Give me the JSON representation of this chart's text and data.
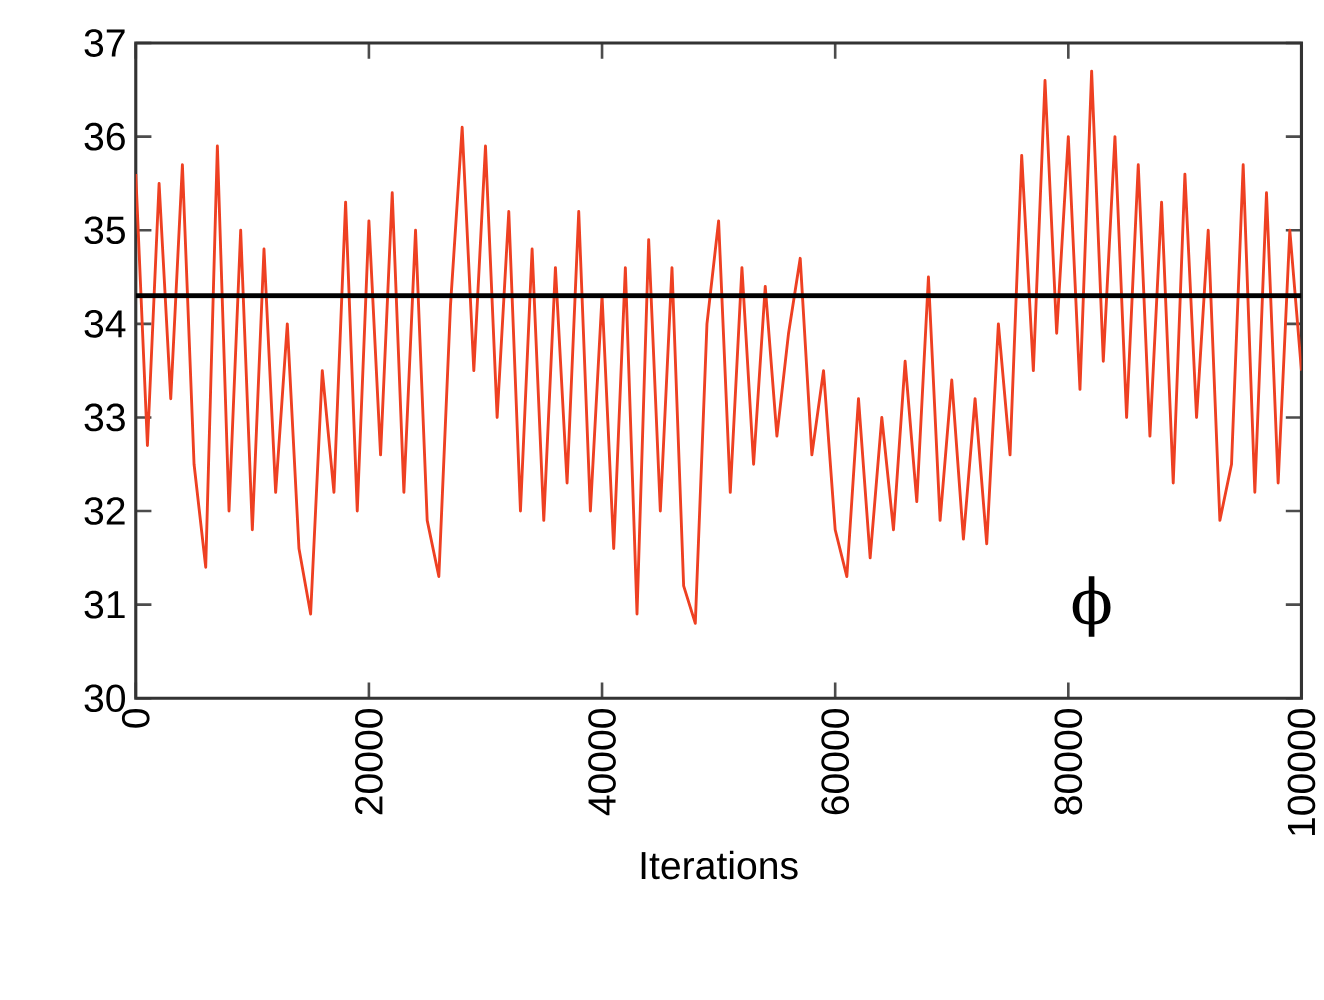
{
  "chart_data": {
    "type": "line",
    "xlabel": "Iterations",
    "x": [
      0,
      1000,
      2000,
      3000,
      4000,
      5000,
      6000,
      7000,
      8000,
      9000,
      10000,
      11000,
      12000,
      13000,
      14000,
      15000,
      16000,
      17000,
      18000,
      19000,
      20000,
      21000,
      22000,
      23000,
      24000,
      25000,
      26000,
      27000,
      28000,
      29000,
      30000,
      31000,
      32000,
      33000,
      34000,
      35000,
      36000,
      37000,
      38000,
      39000,
      40000,
      41000,
      42000,
      43000,
      44000,
      45000,
      46000,
      47000,
      48000,
      49000,
      50000,
      51000,
      52000,
      53000,
      54000,
      55000,
      56000,
      57000,
      58000,
      59000,
      60000,
      61000,
      62000,
      63000,
      64000,
      65000,
      66000,
      67000,
      68000,
      69000,
      70000,
      71000,
      72000,
      73000,
      74000,
      75000,
      76000,
      77000,
      78000,
      79000,
      80000,
      81000,
      82000,
      83000,
      84000,
      85000,
      86000,
      87000,
      88000,
      89000,
      90000,
      91000,
      92000,
      93000,
      94000,
      95000,
      96000,
      97000,
      98000,
      99000,
      100000
    ],
    "series": [
      {
        "color": "#ee4022",
        "values": [
          35.6,
          32.7,
          35.5,
          33.2,
          35.7,
          32.5,
          31.4,
          35.9,
          32.0,
          35.0,
          31.8,
          34.8,
          32.2,
          34.0,
          31.6,
          30.9,
          33.5,
          32.2,
          35.3,
          32.0,
          35.1,
          32.6,
          35.4,
          32.2,
          35.0,
          31.9,
          31.3,
          34.2,
          36.1,
          33.5,
          35.9,
          33.0,
          35.2,
          32.0,
          34.8,
          31.9,
          34.6,
          32.3,
          35.2,
          32.0,
          34.3,
          31.6,
          34.6,
          30.9,
          34.9,
          32.0,
          34.6,
          31.2,
          30.8,
          34.0,
          35.1,
          32.2,
          34.6,
          32.5,
          34.4,
          32.8,
          33.9,
          34.7,
          32.6,
          33.5,
          31.8,
          31.3,
          33.2,
          31.5,
          33.0,
          31.8,
          33.6,
          32.1,
          34.5,
          31.9,
          33.4,
          31.7,
          33.2,
          31.65,
          34.0,
          32.6,
          35.8,
          33.5,
          36.6,
          33.9,
          36.0,
          33.3,
          36.7,
          33.6,
          36.0,
          33.0,
          35.7,
          32.8,
          35.3,
          32.3,
          35.6,
          33.0,
          35.0,
          31.9,
          32.5,
          35.7,
          32.2,
          35.4,
          32.3,
          35.0,
          33.5
        ]
      }
    ],
    "ref_lines": [
      {
        "axis": "y",
        "value": 34.3,
        "color": "#000000"
      }
    ],
    "annotations": [
      "ϕ"
    ],
    "xlim": [
      0,
      100000
    ],
    "ylim": [
      30,
      37
    ],
    "xticks": [
      0,
      20000,
      40000,
      60000,
      80000,
      100000
    ],
    "yticks": [
      30,
      31,
      32,
      33,
      34,
      35,
      36,
      37
    ]
  }
}
